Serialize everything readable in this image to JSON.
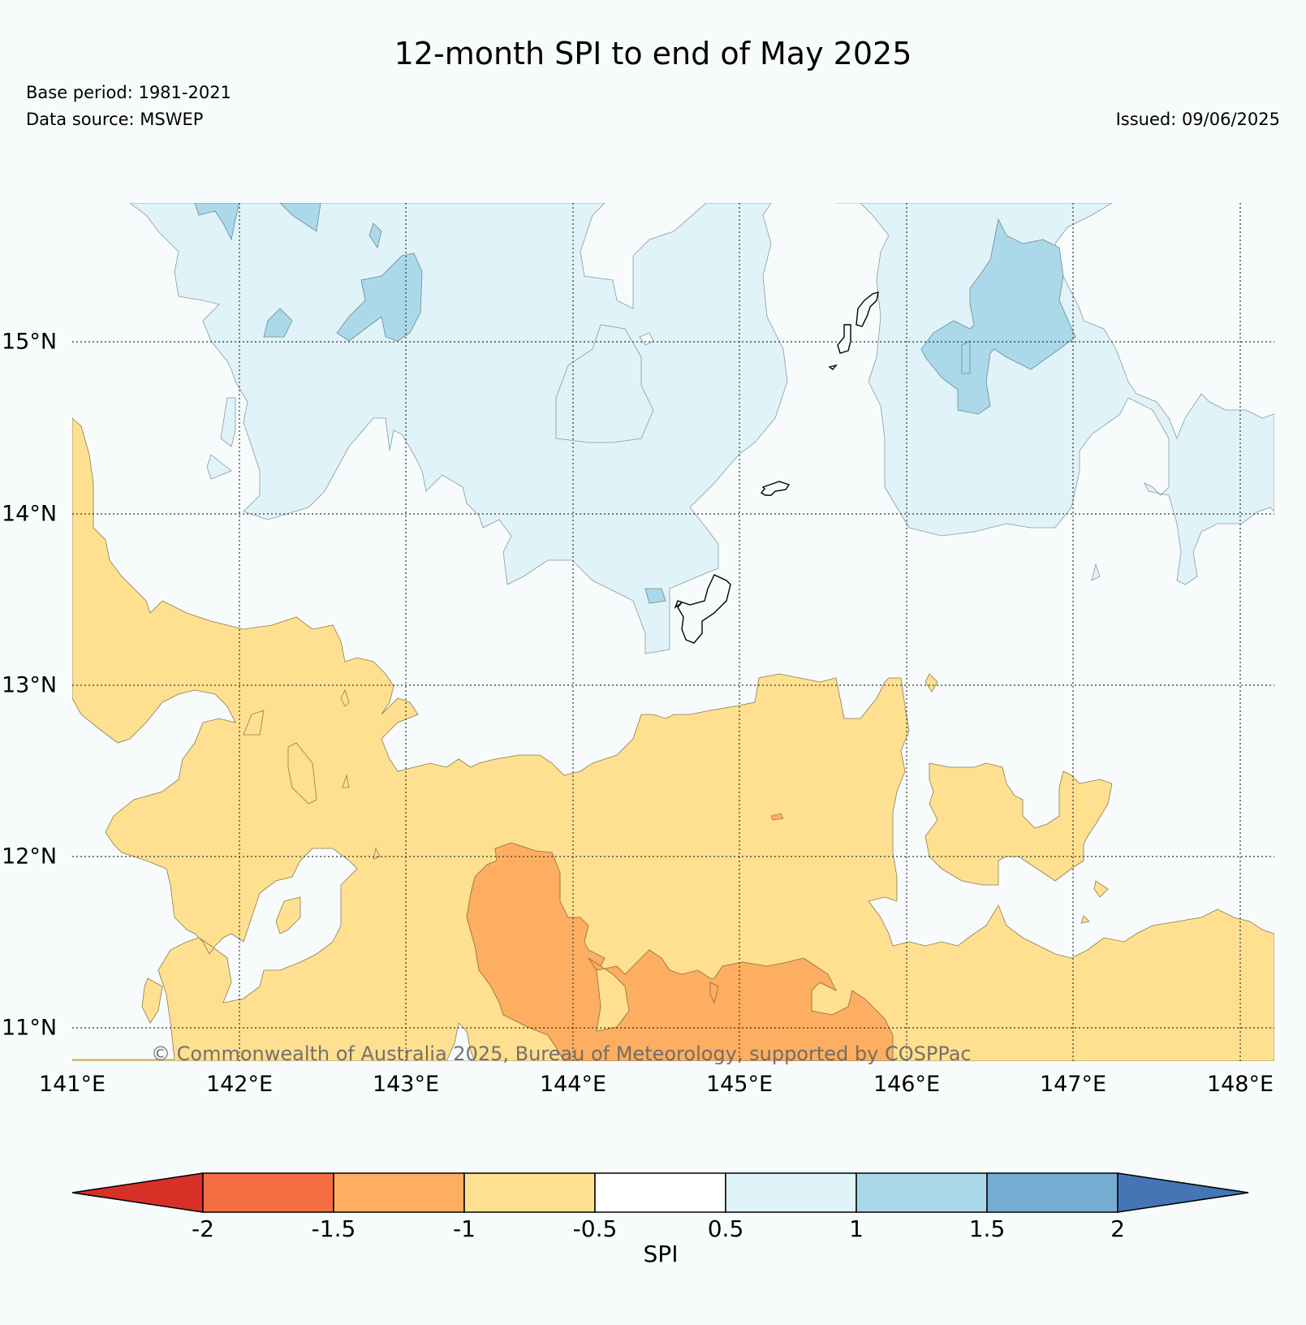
{
  "title": "12-month SPI to end of May 2025",
  "base_period": "Base period: 1981-2021",
  "data_source": "Data source: MSWEP",
  "issued": "Issued: 09/06/2025",
  "copyright": "© Commonwealth of Australia 2025, Bureau of Meteorology, supported by COSPPac",
  "map": {
    "lat_labels": [
      "15°N",
      "14°N",
      "13°N",
      "12°N",
      "11°N"
    ],
    "lon_labels": [
      "141°E",
      "142°E",
      "143°E",
      "144°E",
      "145°E",
      "146°E",
      "147°E",
      "148°E"
    ],
    "gridlines": true
  },
  "colorbar": {
    "label": "SPI",
    "ticks": [
      "-2",
      "-1.5",
      "-1",
      "-0.5",
      "0.5",
      "1",
      "1.5",
      "2"
    ],
    "colors": [
      "#d73027",
      "#f46d43",
      "#fdae61",
      "#fee090",
      "#ffffff",
      "#e0f3f8",
      "#abd9e9",
      "#74add1",
      "#4575b4"
    ]
  }
}
